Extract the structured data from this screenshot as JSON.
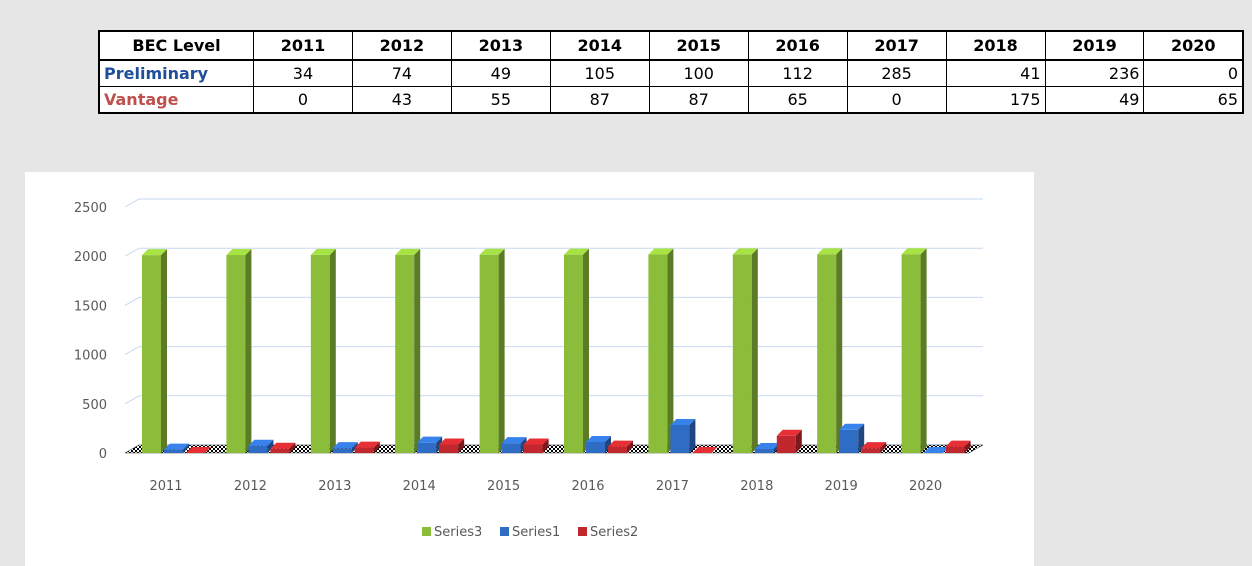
{
  "table": {
    "header_label": "BEC Level",
    "years": [
      "2011",
      "2012",
      "2013",
      "2014",
      "2015",
      "2016",
      "2017",
      "2018",
      "2019",
      "2020"
    ],
    "rows": [
      {
        "label": "Preliminary",
        "color": "#1f4e9a",
        "values": [
          "34",
          "74",
          "49",
          "105",
          "100",
          "112",
          "285",
          "41",
          "236",
          "0"
        ]
      },
      {
        "label": "Vantage",
        "color": "#c0504d",
        "values": [
          "0",
          "43",
          "55",
          "87",
          "87",
          "65",
          "0",
          "175",
          "49",
          "65"
        ]
      }
    ]
  },
  "chart_data": {
    "type": "bar",
    "categories": [
      "2011",
      "2012",
      "2013",
      "2014",
      "2015",
      "2016",
      "2017",
      "2018",
      "2019",
      "2020"
    ],
    "series": [
      {
        "name": "Series3",
        "color": "#8cbd3a",
        "values": [
          2011,
          2012,
          2013,
          2014,
          2015,
          2016,
          2017,
          2018,
          2019,
          2020
        ]
      },
      {
        "name": "Series1",
        "color": "#2f6cc4",
        "values": [
          34,
          74,
          49,
          105,
          100,
          112,
          285,
          41,
          236,
          0
        ]
      },
      {
        "name": "Series2",
        "color": "#c0282d",
        "values": [
          0,
          43,
          55,
          87,
          87,
          65,
          0,
          175,
          49,
          65
        ]
      }
    ],
    "ylim": [
      0,
      2500
    ],
    "yticks": [
      "0",
      "500",
      "1000",
      "1500",
      "2000",
      "2500"
    ],
    "grid": true,
    "legend_position": "bottom",
    "style": "3d-clustered-column"
  }
}
